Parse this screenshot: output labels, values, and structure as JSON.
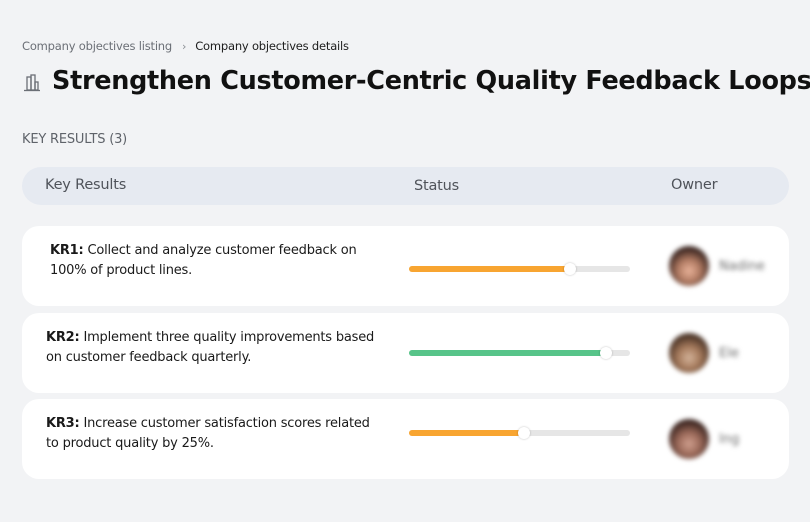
{
  "breadcrumb": {
    "items": [
      {
        "label": "Company objectives listing"
      },
      {
        "label": "Company objectives details"
      }
    ],
    "separator": "›"
  },
  "page": {
    "title": "Strengthen Customer-Centric Quality Feedback Loops",
    "icon": "building-icon"
  },
  "key_results": {
    "section_label": "KEY RESULTS (3)",
    "columns": {
      "key_results": "Key Results",
      "status": "Status",
      "owner": "Owner"
    },
    "rows": [
      {
        "code": "KR1:",
        "text": " Collect and analyze customer feedback on 100% of product lines.",
        "progress_percent": 73,
        "progress_color": "#f8a531",
        "owner_name": "Nadine",
        "avatar_colors": [
          "#3a2520",
          "#b07a62",
          "#e9b39a"
        ]
      },
      {
        "code": "KR2:",
        "text": " Implement three quality improvements based on customer feedback quarterly.",
        "progress_percent": 89,
        "progress_color": "#57c489",
        "owner_name": "Ele",
        "avatar_colors": [
          "#4a3326",
          "#a57a5c",
          "#d3b39a"
        ]
      },
      {
        "code": "KR3:",
        "text": " Increase customer satisfaction scores related to product quality by 25%.",
        "progress_percent": 52,
        "progress_color": "#f8a531",
        "owner_name": "Ing",
        "avatar_colors": [
          "#3b2520",
          "#9c6a5a",
          "#cf9f8e"
        ]
      }
    ]
  },
  "colors": {
    "background": "#f2f3f5",
    "header_bg": "#e6eaf1",
    "card_bg": "#ffffff",
    "track": "#e6e6e6",
    "orange": "#f8a531",
    "green": "#57c489"
  }
}
